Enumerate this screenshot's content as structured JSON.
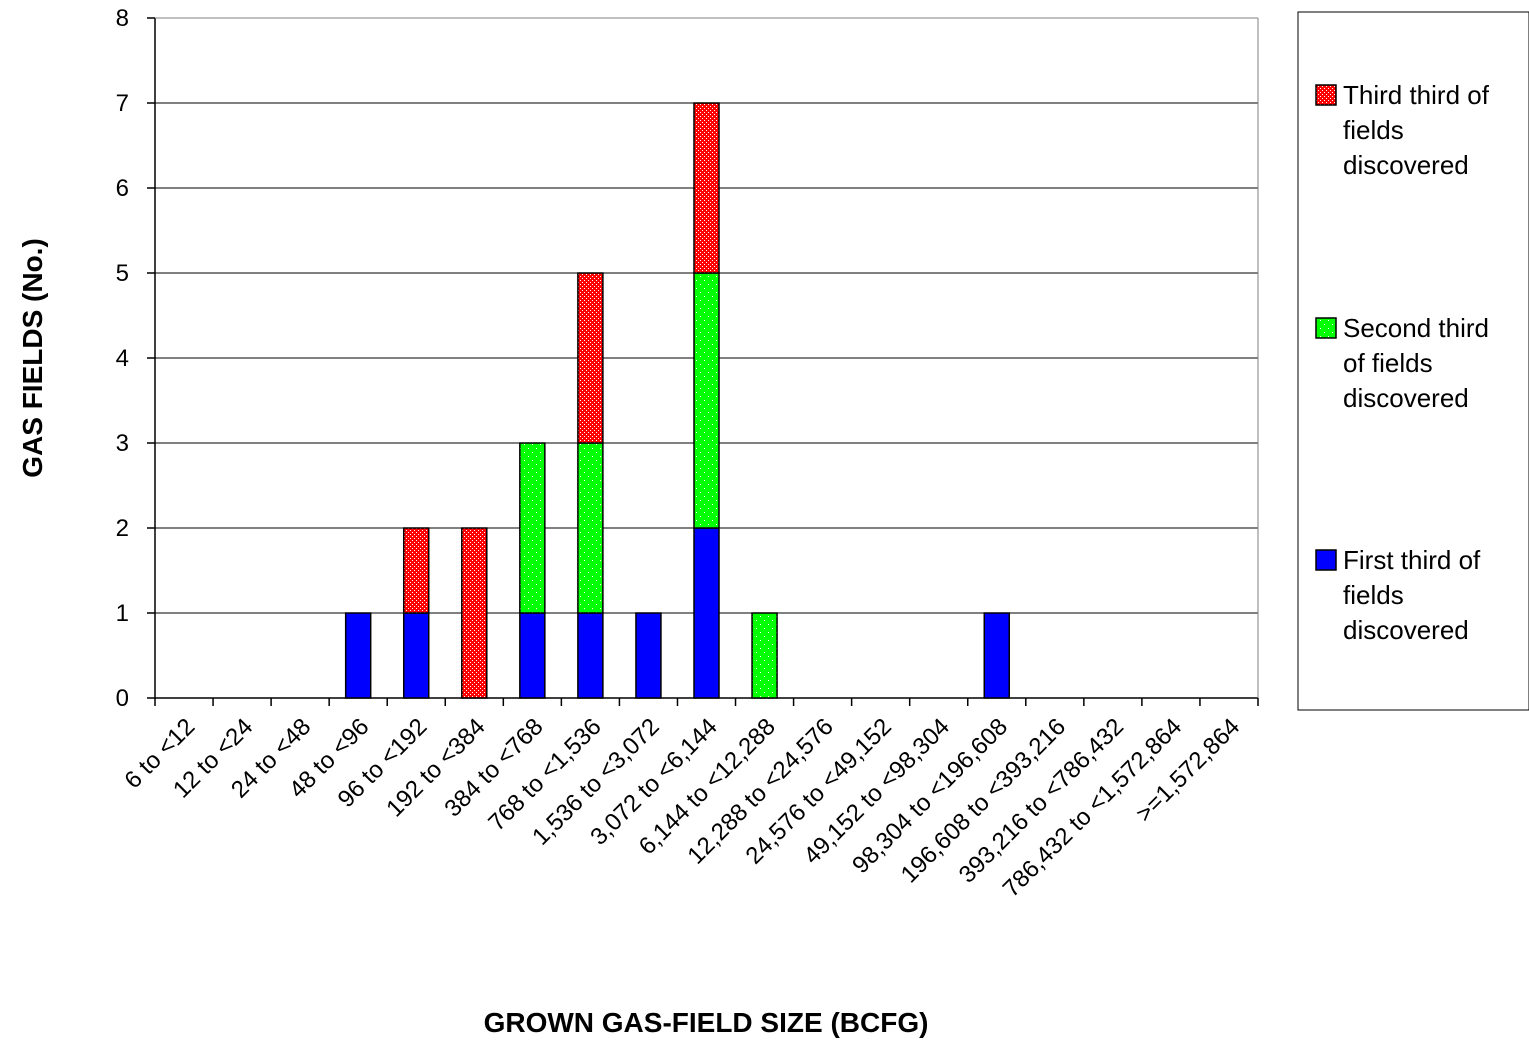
{
  "chart_data": {
    "type": "bar",
    "stacked": true,
    "title": "",
    "xlabel": "GROWN GAS-FIELD SIZE (BCFG)",
    "ylabel": "GAS FIELDS (No.)",
    "ylim": [
      0,
      8
    ],
    "y_ticks": [
      "0",
      "1",
      "2",
      "3",
      "4",
      "5",
      "6",
      "7",
      "8"
    ],
    "grid": true,
    "legend_position": "right",
    "categories": [
      "6 to <12",
      "12 to <24",
      "24 to <48",
      "48 to <96",
      "96 to <192",
      "192 to <384",
      "384 to <768",
      "768 to <1,536",
      "1,536 to <3,072",
      "3,072 to <6,144",
      "6,144 to <12,288",
      "12,288 to <24,576",
      "24,576 to <49,152",
      "49,152 to <98,304",
      "98,304 to <196,608",
      "196,608 to <393,216",
      "393,216 to <786,432",
      "786,432 to <1,572,864",
      ">=1,572,864"
    ],
    "series": [
      {
        "name": "First third of fields discovered",
        "legend_lines": [
          "First third of",
          "fields",
          "discovered"
        ],
        "color": "#0000ff",
        "pattern": "solid",
        "values": [
          0,
          0,
          0,
          1,
          1,
          0,
          1,
          1,
          1,
          2,
          0,
          0,
          0,
          0,
          1,
          0,
          0,
          0,
          0
        ]
      },
      {
        "name": "Second third of fields discovered",
        "legend_lines": [
          "Second third",
          "of fields",
          "discovered"
        ],
        "color": "#00ff00",
        "pattern": "dots",
        "values": [
          0,
          0,
          0,
          0,
          0,
          0,
          2,
          2,
          0,
          3,
          1,
          0,
          0,
          0,
          0,
          0,
          0,
          0,
          0
        ]
      },
      {
        "name": "Third third of fields discovered",
        "legend_lines": [
          "Third third of",
          "fields",
          "discovered"
        ],
        "color": "#ff0000",
        "pattern": "dots",
        "values": [
          0,
          0,
          0,
          0,
          1,
          2,
          0,
          2,
          0,
          2,
          0,
          0,
          0,
          0,
          0,
          0,
          0,
          0,
          0
        ]
      }
    ]
  }
}
